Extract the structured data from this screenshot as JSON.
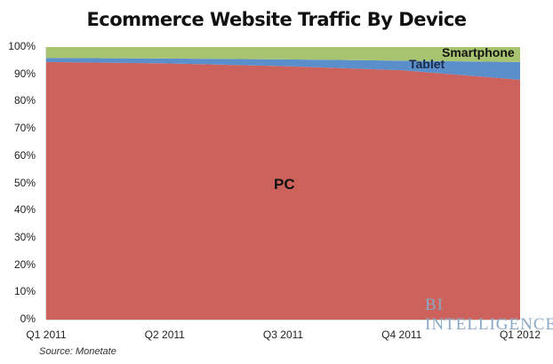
{
  "title": "Ecommerce Website Traffic By Device",
  "source": "Source: Monetate",
  "watermark": "BI INTELLIGENCE",
  "colors": {
    "pc": "#cd625c",
    "tablet": "#5b8fcc",
    "smartphone": "#a8c470"
  },
  "chart_data": {
    "type": "area",
    "title": "Ecommerce Website Traffic By Device",
    "xlabel": "",
    "ylabel": "",
    "categories": [
      "Q1 2011",
      "Q2 2011",
      "Q3 2011",
      "Q4 2011",
      "Q1 2012"
    ],
    "stacked": "percent",
    "ylim": [
      0,
      100
    ],
    "yticks": [
      "0%",
      "10%",
      "20%",
      "30%",
      "40%",
      "50%",
      "60%",
      "70%",
      "80%",
      "90%",
      "100%"
    ],
    "series": [
      {
        "name": "PC",
        "values": [
          94.5,
          94,
          93,
          91.5,
          88
        ]
      },
      {
        "name": "Tablet",
        "values": [
          1.5,
          1.8,
          2.5,
          3.5,
          6.5
        ]
      },
      {
        "name": "Smartphone",
        "values": [
          4,
          4.2,
          4.5,
          5,
          5.5
        ]
      }
    ],
    "annotations": [
      "PC",
      "Tablet",
      "Smartphone"
    ],
    "grid": false,
    "legend": "inline labels"
  }
}
